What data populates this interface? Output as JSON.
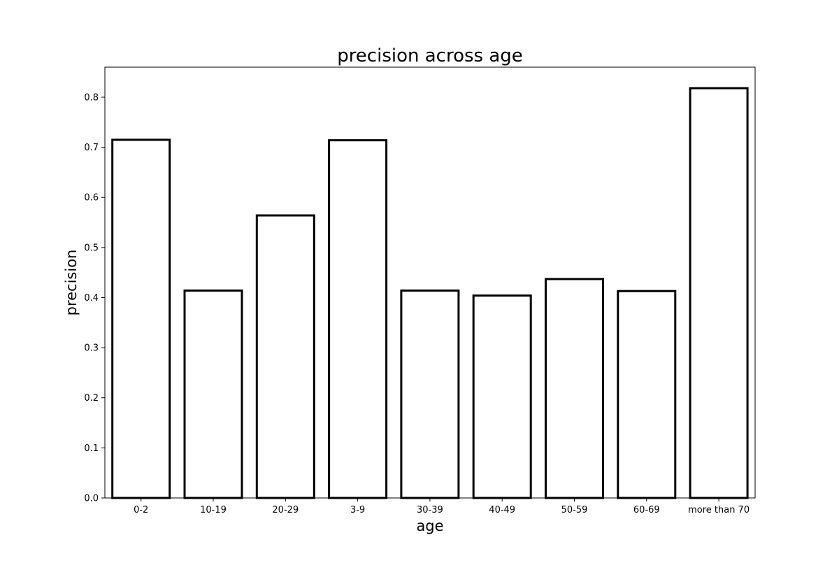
{
  "chart_data": {
    "type": "bar",
    "title": "precision across age",
    "xlabel": "age",
    "ylabel": "precision",
    "categories": [
      "0-2",
      "10-19",
      "20-29",
      "3-9",
      "30-39",
      "40-49",
      "50-59",
      "60-69",
      "more than 70"
    ],
    "values": [
      0.715,
      0.414,
      0.564,
      0.714,
      0.414,
      0.404,
      0.437,
      0.413,
      0.818
    ],
    "ylim": [
      0,
      0.86
    ],
    "yticks": [
      0.0,
      0.1,
      0.2,
      0.3,
      0.4,
      0.5,
      0.6,
      0.7,
      0.8
    ],
    "ytick_labels": [
      "0.0",
      "0.1",
      "0.2",
      "0.3",
      "0.4",
      "0.5",
      "0.6",
      "0.7",
      "0.8"
    ],
    "grid": false,
    "legend": "none",
    "colors": {
      "bar_fill": "#ffffff",
      "bar_edge": "#000000",
      "axes": "#000000",
      "background": "#ffffff"
    }
  }
}
